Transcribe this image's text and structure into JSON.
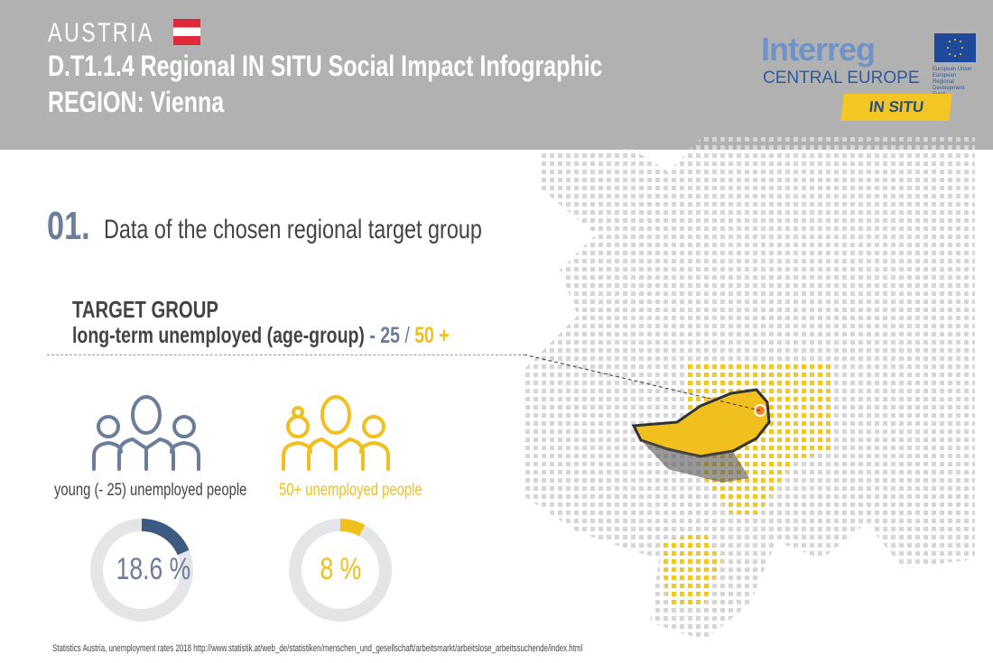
{
  "header": {
    "country": "AUSTRIA",
    "title": "D.T1.1.4 Regional IN SITU Social Impact Infographic",
    "region": "REGION: Vienna"
  },
  "logo": {
    "brand": "Interreg",
    "program": "CENTRAL EUROPE",
    "eu_text": [
      "European Union",
      "European Regional",
      "Development Fund"
    ],
    "project": "IN SITU"
  },
  "section": {
    "number": "01.",
    "title": "Data of the chosen regional target group"
  },
  "target_group": {
    "heading": "TARGET GROUP",
    "description": "long-term unemployed (age-group)",
    "sep": " - ",
    "age_young": "25",
    "slash": " / ",
    "age_old": "50 +"
  },
  "groups": [
    {
      "label": "young (- 25) unemployed people",
      "value_text": "18.6 %",
      "percent": 18.6,
      "color": "#3d5a80",
      "icon": "people-group-icon"
    },
    {
      "label": "50+ unemployed people",
      "value_text": "8 %",
      "percent": 8,
      "color": "#f1bf1e",
      "icon": "people-group-icon"
    }
  ],
  "colors": {
    "header": "#b1b1b1",
    "slate": "#6b7d99",
    "yellow": "#f1bf1e",
    "map_dots": "#d4d6da",
    "highlight": "#f3c623"
  },
  "source": "Statistics Austria, unemployment rates 2018 http://www.statistik.at/web_de/statistiken/menschen_und_gesellschaft/arbeitsmarkt/arbeitslose_arbeitssuchende/index.html"
}
